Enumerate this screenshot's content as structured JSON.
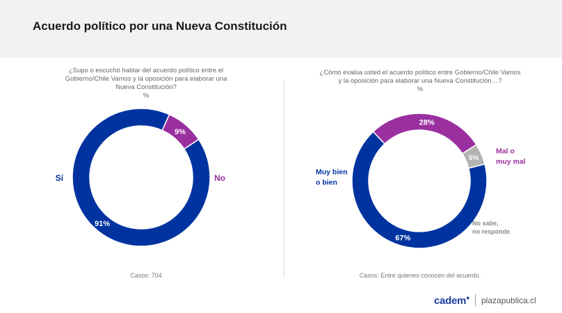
{
  "header": {
    "title": "Acuerdo político por una Nueva Constitución"
  },
  "colors": {
    "blue": "#0033a0",
    "purple": "#9a2fa0",
    "gray": "#b3b3b3"
  },
  "footer": {
    "brand": "cadem",
    "site": "plazapublica.cl"
  },
  "chart_data": [
    {
      "type": "pie",
      "variant": "donut",
      "question": [
        "¿Supo o escuchó hablar del acuerdo político entre el",
        "Gobierno/Chile Vamos y la oposición para elaborar una",
        "Nueva Constitución?",
        "%"
      ],
      "casos": "Casos: 704",
      "slices": [
        {
          "label": "Sí",
          "value": 91,
          "value_label": "91%",
          "color": "#0033a0"
        },
        {
          "label": "No",
          "value": 9,
          "value_label": "9%",
          "color": "#9a2fa0"
        }
      ]
    },
    {
      "type": "pie",
      "variant": "donut",
      "question": [
        "¿Cómo evalúa usted el acuerdo político entre Gobierno/Chile Vamos",
        "y la oposición para elaborar una Nueva Constitución…?",
        "%"
      ],
      "casos": "Casos: Entre quienes conocen del acuerdo.",
      "slices": [
        {
          "label": "Muy bien o bien",
          "label_lines": [
            "Muy bien",
            "o bien"
          ],
          "value": 67,
          "value_label": "67%",
          "color": "#0033a0"
        },
        {
          "label": "Mal o muy mal",
          "label_lines": [
            "Mal o",
            "muy mal"
          ],
          "value": 28,
          "value_label": "28%",
          "color": "#9a2fa0"
        },
        {
          "label": "No sabe, no responde",
          "label_lines": [
            "No sabe,",
            "no responde"
          ],
          "value": 5,
          "value_label": "5%",
          "color": "#b3b3b3"
        }
      ]
    }
  ]
}
